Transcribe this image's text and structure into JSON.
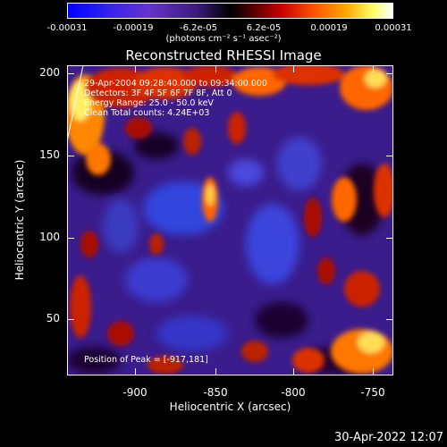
{
  "colorbar": {
    "ticks": [
      "-0.00031",
      "-0.00019",
      "-6.2e-05",
      "6.2e-05",
      "0.00019",
      "0.00031"
    ],
    "units": "(photons cm⁻² s⁻¹ asec⁻²)"
  },
  "title": "Reconstructed RHESSI Image",
  "info": {
    "time_range": "29-Apr-2004 09:28:40.000 to 09:34:00.000",
    "detectors": "Detectors: 3F 4F 5F 6F 7F 8F, Att 0",
    "energy": "Energy Range: 25.0 - 50.0 keV",
    "method": "Clean    Total counts: 4.24E+03",
    "peak": "Position of Peak = [-917,181]"
  },
  "axes": {
    "xlabel": "Heliocentric X (arcsec)",
    "ylabel": "Heliocentric Y (arcsec)",
    "xticks": [
      "-900",
      "-850",
      "-800",
      "-750"
    ],
    "yticks": [
      "200",
      "150",
      "100",
      "50"
    ]
  },
  "datestamp": "30-Apr-2022 12:07"
}
